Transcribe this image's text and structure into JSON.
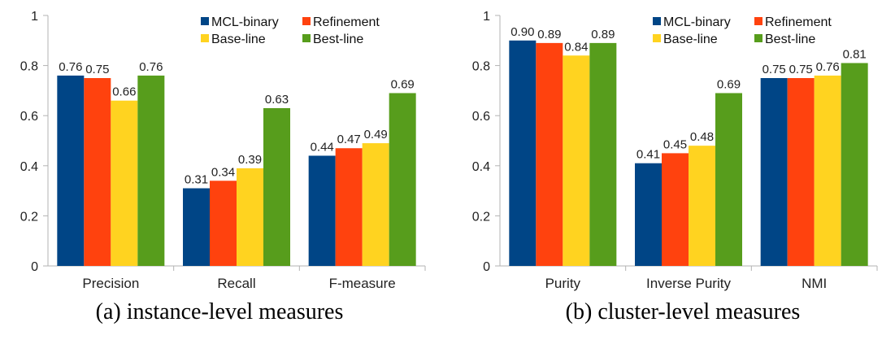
{
  "legend_placement": "top-right",
  "chart_data": [
    {
      "type": "bar",
      "caption": "(a) instance-level measures",
      "categories": [
        "Precision",
        "Recall",
        "F-measure"
      ],
      "ylim": [
        0,
        1
      ],
      "yticks": [
        "0",
        "0.2",
        "0.4",
        "0.6",
        "0.8",
        "1"
      ],
      "grid": false,
      "legend": "top-right",
      "series": [
        {
          "name": "MCL-binary",
          "color": "#004586",
          "values": [
            0.76,
            0.31,
            0.44
          ],
          "labels": [
            "0.76",
            "0.31",
            "0.44"
          ]
        },
        {
          "name": "Refinement",
          "color": "#ff420e",
          "values": [
            0.75,
            0.34,
            0.47
          ],
          "labels": [
            "0.75",
            "0.34",
            "0.47"
          ]
        },
        {
          "name": "Base-line",
          "color": "#ffd320",
          "values": [
            0.66,
            0.39,
            0.49
          ],
          "labels": [
            "0.66",
            "0.39",
            "0.49"
          ]
        },
        {
          "name": "Best-line",
          "color": "#579d1c",
          "values": [
            0.76,
            0.63,
            0.69
          ],
          "labels": [
            "0.76",
            "0.63",
            "0.69"
          ]
        }
      ]
    },
    {
      "type": "bar",
      "caption": "(b) cluster-level measures",
      "categories": [
        "Purity",
        "Inverse Purity",
        "NMI"
      ],
      "ylim": [
        0,
        1
      ],
      "yticks": [
        "0",
        "0.2",
        "0.4",
        "0.6",
        "0.8",
        "1"
      ],
      "grid": false,
      "legend": "top-right",
      "series": [
        {
          "name": "MCL-binary",
          "color": "#004586",
          "values": [
            0.9,
            0.41,
            0.75
          ],
          "labels": [
            "0.90",
            "0.41",
            "0.75"
          ]
        },
        {
          "name": "Refinement",
          "color": "#ff420e",
          "values": [
            0.89,
            0.45,
            0.75
          ],
          "labels": [
            "0.89",
            "0.45",
            "0.75"
          ]
        },
        {
          "name": "Base-line",
          "color": "#ffd320",
          "values": [
            0.84,
            0.48,
            0.76
          ],
          "labels": [
            "0.84",
            "0.48",
            "0.76"
          ]
        },
        {
          "name": "Best-line",
          "color": "#579d1c",
          "values": [
            0.89,
            0.69,
            0.81
          ],
          "labels": [
            "0.89",
            "0.69",
            "0.81"
          ]
        }
      ]
    }
  ]
}
